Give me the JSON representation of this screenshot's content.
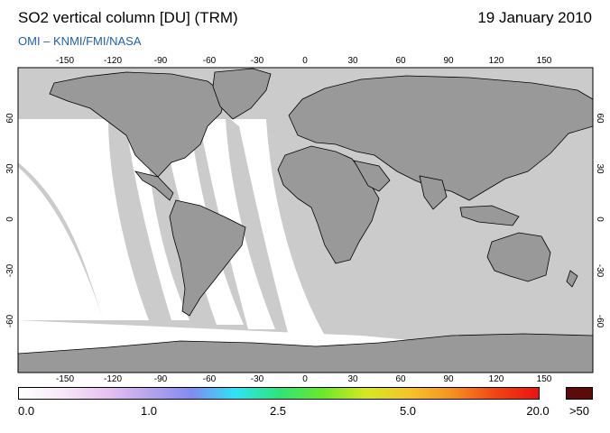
{
  "header": {
    "title": "SO2 vertical column [DU] (TRM)",
    "date": "19 January 2010",
    "credit": "OMI  –  KNMI/FMI/NASA"
  },
  "map": {
    "projection": "equirectangular",
    "lon_ticks": [
      "-150",
      "-120",
      "-90",
      "-60",
      "-30",
      "0",
      "30",
      "60",
      "90",
      "120",
      "150"
    ],
    "lat_ticks": [
      "60",
      "30",
      "0",
      "-30",
      "-60"
    ],
    "colors": {
      "land": "#999999",
      "no_data": "#cbcbcb",
      "background_low_value": "#ffffff",
      "coastline": "#000000"
    }
  },
  "colorbar": {
    "labels": [
      "0.0",
      "1.0",
      "2.5",
      "5.0",
      "20.0"
    ],
    "overflow_label": ">50",
    "overflow_color": "#5c0a0a",
    "gradient": [
      "#ffffff",
      "#f7e8f7",
      "#e9c3f2",
      "#b8a4ec",
      "#7f8cf2",
      "#2fe3f5",
      "#2de57a",
      "#69e82b",
      "#d6e81e",
      "#f6c52a",
      "#f6911f",
      "#f04513",
      "#ee1010"
    ]
  }
}
